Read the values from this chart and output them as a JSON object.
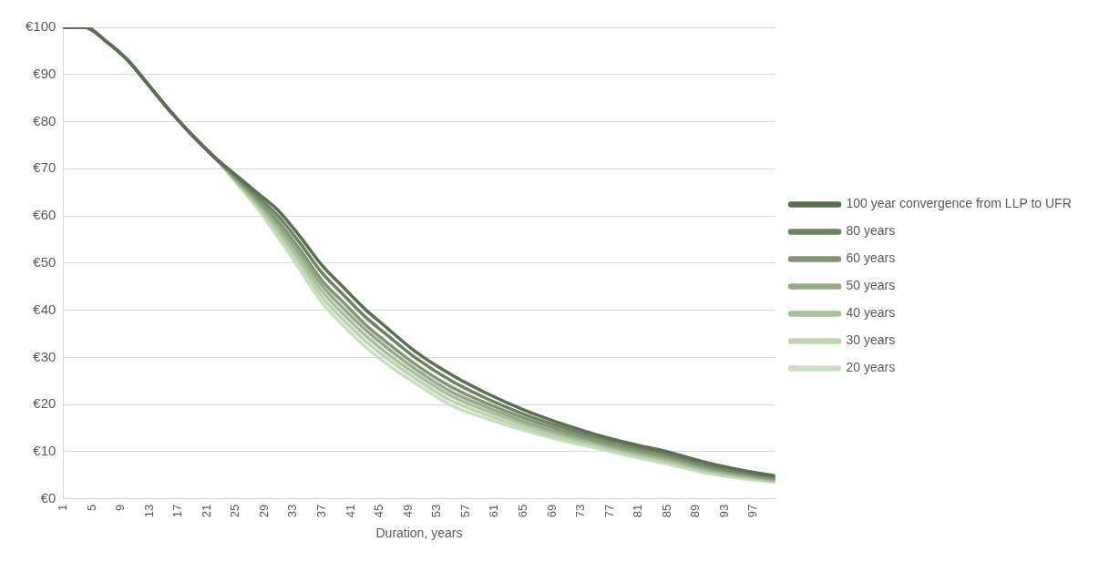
{
  "chart_data": {
    "type": "line",
    "xlabel": "Duration, years",
    "x": [
      1,
      4,
      7,
      10,
      13,
      16,
      19,
      22,
      25,
      28,
      31,
      34,
      37,
      40,
      43,
      46,
      50,
      55,
      60,
      65,
      70,
      75,
      80,
      85,
      90,
      95,
      100
    ],
    "xlim": [
      1,
      100
    ],
    "xticks": [
      1,
      5,
      9,
      13,
      17,
      21,
      25,
      29,
      33,
      37,
      41,
      45,
      49,
      53,
      57,
      61,
      65,
      69,
      73,
      77,
      81,
      85,
      89,
      93,
      97
    ],
    "ylim": [
      0,
      100
    ],
    "yticks": [
      {
        "value": 0,
        "label": "€0"
      },
      {
        "value": 10,
        "label": "€10"
      },
      {
        "value": 20,
        "label": "€20"
      },
      {
        "value": 30,
        "label": "€30"
      },
      {
        "value": 40,
        "label": "€40"
      },
      {
        "value": 50,
        "label": "€50"
      },
      {
        "value": 60,
        "label": "€60"
      },
      {
        "value": 70,
        "label": "€70"
      },
      {
        "value": 80,
        "label": "€80"
      },
      {
        "value": 90,
        "label": "€90"
      },
      {
        "value": 100,
        "label": "€100"
      }
    ],
    "grid": "y",
    "legend": "right",
    "marker": "none",
    "line_style": "solid",
    "series": [
      {
        "name": "100 year convergence from LLP to UFR",
        "color": "#5a7050",
        "values": [
          100,
          100,
          97,
          93,
          87.5,
          82,
          77,
          72.5,
          68.7,
          64.9,
          61.0,
          55.5,
          49.5,
          44.8,
          40.2,
          36.3,
          31.2,
          26.3,
          22.3,
          18.9,
          16.1,
          13.7,
          11.7,
          10.0,
          7.9,
          6.2,
          4.9
        ]
      },
      {
        "name": "80 years",
        "color": "#6b8461",
        "values": [
          100,
          100,
          97,
          93,
          87.5,
          82,
          77,
          72.5,
          68.4,
          64.2,
          59.8,
          54.1,
          47.9,
          43.2,
          38.6,
          34.8,
          29.9,
          25.0,
          21.2,
          18.0,
          15.4,
          13.1,
          11.2,
          9.5,
          7.4,
          5.8,
          4.6
        ]
      },
      {
        "name": "60 years",
        "color": "#7f9873",
        "values": [
          100,
          100,
          97,
          93,
          87.5,
          82,
          77,
          72.5,
          68.1,
          63.6,
          58.7,
          52.7,
          46.3,
          41.6,
          37.0,
          33.2,
          28.5,
          23.7,
          20.2,
          17.2,
          14.7,
          12.5,
          10.6,
          9.0,
          7.0,
          5.5,
          4.3
        ]
      },
      {
        "name": "50 years",
        "color": "#94ab88",
        "values": [
          100,
          100,
          97,
          93,
          87.5,
          82,
          77,
          72.5,
          67.8,
          63.1,
          57.8,
          51.6,
          45.2,
          40.3,
          35.9,
          32.1,
          27.5,
          22.7,
          19.4,
          16.5,
          14.1,
          12.1,
          10.2,
          8.6,
          6.6,
          5.2,
          4.1
        ]
      },
      {
        "name": "40 years",
        "color": "#a9c09d",
        "values": [
          100,
          100,
          97,
          93,
          87.5,
          82,
          77,
          72.5,
          67.6,
          62.6,
          56.9,
          50.5,
          44.0,
          39.1,
          34.7,
          30.9,
          26.5,
          21.8,
          18.6,
          15.9,
          13.6,
          11.7,
          9.8,
          8.2,
          6.3,
          4.9,
          3.9
        ]
      },
      {
        "name": "30 years",
        "color": "#bcd4b0",
        "values": [
          100,
          100,
          97,
          93,
          87.5,
          82,
          77,
          72.5,
          67.3,
          62.1,
          56.1,
          49.5,
          42.8,
          37.9,
          33.5,
          29.8,
          25.5,
          20.8,
          17.8,
          15.2,
          13.0,
          11.3,
          9.4,
          7.8,
          5.9,
          4.7,
          3.7
        ]
      },
      {
        "name": "20 years",
        "color": "#c8dfc0",
        "values": [
          100,
          100,
          97,
          93,
          87.5,
          82,
          77,
          72.5,
          67.1,
          61.6,
          55.2,
          48.4,
          41.6,
          36.7,
          32.3,
          28.6,
          24.5,
          19.8,
          17.0,
          14.6,
          12.5,
          10.8,
          9.0,
          7.4,
          5.6,
          4.4,
          3.5
        ]
      }
    ]
  }
}
